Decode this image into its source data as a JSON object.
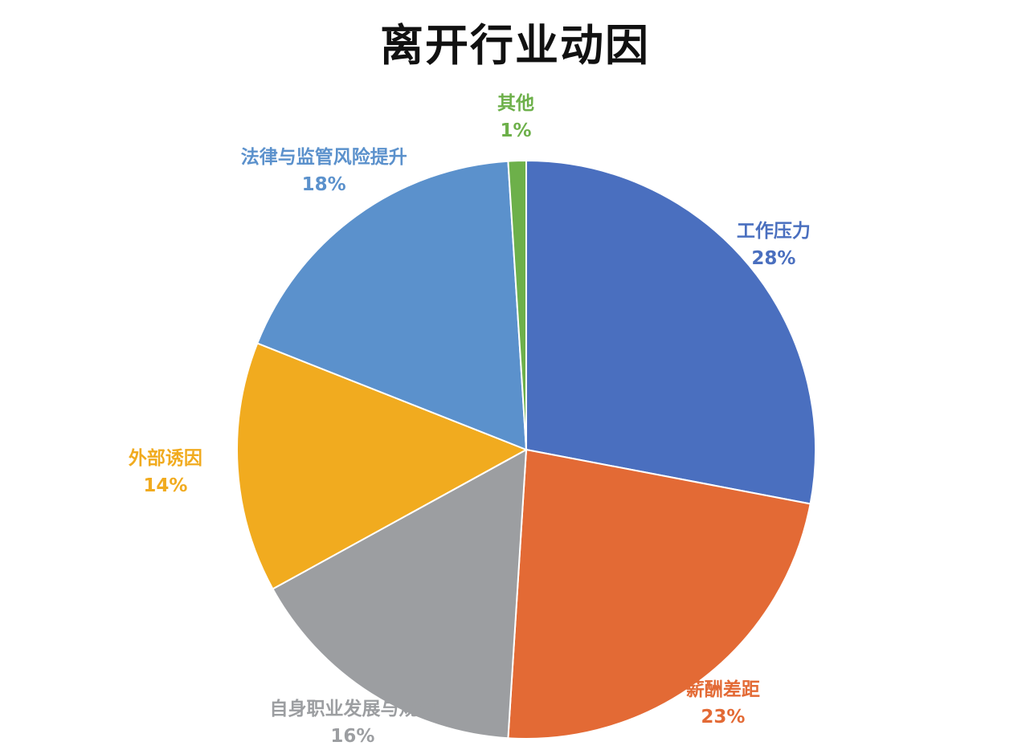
{
  "chart_data": {
    "type": "pie",
    "title": "离开行业动因",
    "slices": [
      {
        "label": "工作压力",
        "value": 28,
        "value_label": "28%",
        "color": "#4a6fbf"
      },
      {
        "label": "薪酬差距",
        "value": 23,
        "value_label": "23%",
        "color": "#e36a35"
      },
      {
        "label": "自身职业发展与规划",
        "value": 16,
        "value_label": "16%",
        "color": "#9c9ea1"
      },
      {
        "label": "外部诱因",
        "value": 14,
        "value_label": "14%",
        "color": "#f1ab1f"
      },
      {
        "label": "法律与监管风险提升",
        "value": 18,
        "value_label": "18%",
        "color": "#5b91cc"
      },
      {
        "label": "其他",
        "value": 1,
        "value_label": "1%",
        "color": "#6db04a"
      }
    ],
    "legend": "none",
    "data_labels": "outside, category name and percentage"
  }
}
